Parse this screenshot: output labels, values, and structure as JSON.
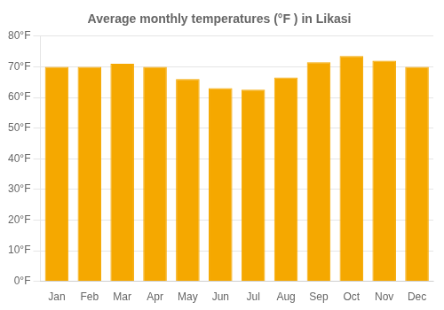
{
  "chart_data": {
    "type": "bar",
    "title": "Average monthly temperatures (°F ) in Likasi",
    "categories": [
      "Jan",
      "Feb",
      "Mar",
      "Apr",
      "May",
      "Jun",
      "Jul",
      "Aug",
      "Sep",
      "Oct",
      "Nov",
      "Dec"
    ],
    "values": [
      70,
      70,
      71,
      70,
      66,
      63,
      62.5,
      66.5,
      71.5,
      73.5,
      72,
      70
    ],
    "color": "#F5A800",
    "ylim": [
      0,
      80
    ],
    "yticks": [
      {
        "value": 0,
        "label": "0°F"
      },
      {
        "value": 10,
        "label": "10°F"
      },
      {
        "value": 20,
        "label": "20°F"
      },
      {
        "value": 30,
        "label": "30°F"
      },
      {
        "value": 40,
        "label": "40°F"
      },
      {
        "value": 50,
        "label": "50°F"
      },
      {
        "value": 60,
        "label": "60°F"
      },
      {
        "value": 70,
        "label": "70°F"
      },
      {
        "value": 80,
        "label": "80°F"
      }
    ],
    "grid": true
  }
}
